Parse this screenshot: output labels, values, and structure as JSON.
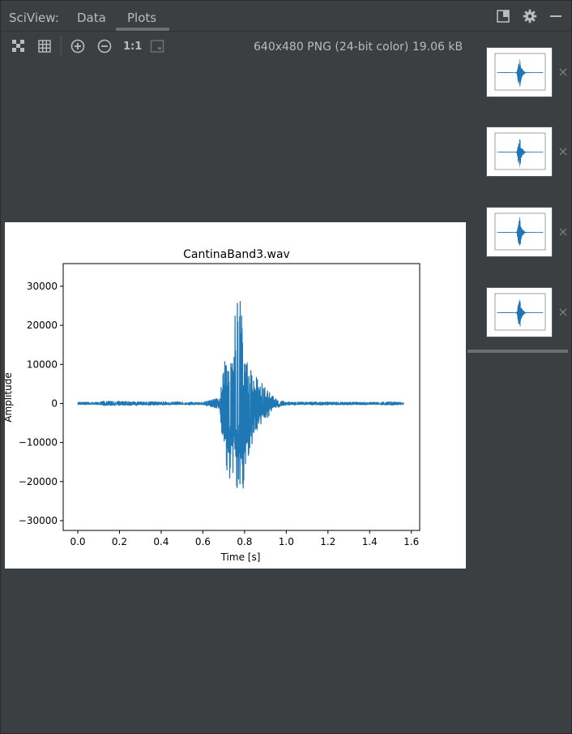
{
  "header": {
    "brand": "SciView:",
    "tabs": [
      {
        "label": "Data",
        "active": false
      },
      {
        "label": "Plots",
        "active": true
      }
    ],
    "icons": [
      "dock-icon",
      "gear-icon",
      "minimize-icon"
    ]
  },
  "toolbar": {
    "icons": [
      "chessboard-icon",
      "grid-icon",
      "zoom-in-icon",
      "zoom-out-icon",
      "actual-size-icon",
      "fit-window-icon"
    ],
    "ratio_label": "1:1",
    "image_info": "640x480 PNG (24-bit color) 19.06 kB"
  },
  "thumbnails": {
    "count": 4,
    "close_label": "×"
  },
  "colors": {
    "panel_bg": "#3c3f41",
    "text": "#bbbbbb",
    "series": "#1f77b4"
  },
  "chart_data": {
    "type": "line",
    "title": "CantinaBand3.wav",
    "xlabel": "Time [s]",
    "ylabel": "Amplitude",
    "xlim": [
      -0.07,
      1.64
    ],
    "ylim": [
      -32500,
      35800
    ],
    "xticks": [
      0.0,
      0.2,
      0.4,
      0.6,
      0.8,
      1.0,
      1.2,
      1.4,
      1.6
    ],
    "xtick_labels": [
      "0.0",
      "0.2",
      "0.4",
      "0.6",
      "0.8",
      "1.0",
      "1.2",
      "1.4",
      "1.6"
    ],
    "yticks": [
      -30000,
      -20000,
      -10000,
      0,
      10000,
      20000,
      30000
    ],
    "ytick_labels": [
      "−30000",
      "−20000",
      "−10000",
      "0",
      "10000",
      "20000",
      "30000"
    ],
    "grid": false,
    "series": [
      {
        "duration": 1.5625,
        "envelope": {
          "t": [
            0.0,
            0.1,
            0.11,
            0.6,
            0.68,
            0.7,
            0.72,
            0.74,
            0.76,
            0.78,
            0.8,
            0.82,
            0.85,
            0.88,
            0.92,
            0.95,
            1.0,
            1.45,
            1.5,
            1.5625
          ],
          "upper": [
            300,
            300,
            600,
            300,
            1500,
            9000,
            16000,
            22000,
            24000,
            32500,
            14000,
            10000,
            8000,
            5500,
            3000,
            1200,
            400,
            300,
            500,
            300
          ],
          "lower": [
            -300,
            -300,
            -600,
            -300,
            -1500,
            -13000,
            -20000,
            -22000,
            -24000,
            -29500,
            -22000,
            -14000,
            -8000,
            -5500,
            -3000,
            -1200,
            -400,
            -300,
            -500,
            -300
          ]
        }
      }
    ]
  }
}
